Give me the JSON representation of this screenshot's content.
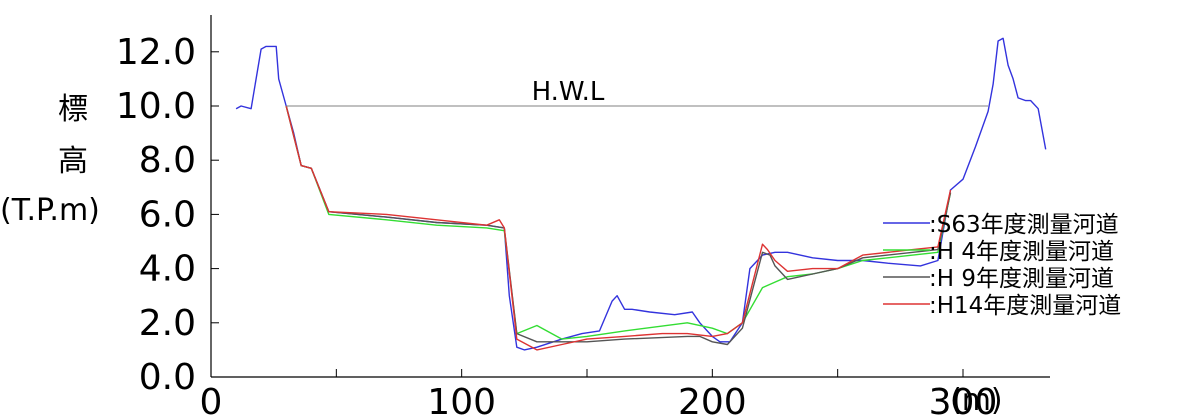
{
  "chart_data": {
    "type": "line",
    "xlabel": "(m)",
    "ylabel_chars": [
      "標",
      "高"
    ],
    "ylabel_unit": "(T.P.m)",
    "xlim": [
      0,
      350
    ],
    "ylim": [
      0,
      13
    ],
    "x_ticks": [
      "0",
      "100",
      "200",
      "300"
    ],
    "x_tick_values": [
      0,
      100,
      200,
      300
    ],
    "y_ticks": [
      "0.0",
      "2.0",
      "4.0",
      "6.0",
      "8.0",
      "10.0",
      "12.0"
    ],
    "y_tick_values": [
      0,
      2,
      4,
      6,
      8,
      10,
      12
    ],
    "x_minor": [
      50,
      150,
      250
    ],
    "grid": false,
    "legend_position": "right",
    "reference_line": {
      "label": "H.W.L",
      "y": 10.0,
      "x_from": 30,
      "x_to": 310,
      "color": "#808080"
    },
    "series": [
      {
        "name": ":S63年度測量河道",
        "color": "#3333dd",
        "x": [
          10,
          12,
          16,
          20,
          22,
          26,
          27,
          30,
          33,
          36,
          40,
          47,
          70,
          90,
          110,
          117,
          119,
          122,
          125,
          130,
          140,
          148,
          155,
          160,
          162,
          165,
          168,
          175,
          185,
          192,
          195,
          200,
          203,
          207,
          212,
          215,
          220,
          225,
          230,
          240,
          250,
          260,
          270,
          283,
          290,
          295,
          300,
          305,
          310,
          312,
          314,
          316,
          318,
          320,
          322,
          325,
          327,
          330,
          333
        ],
        "y": [
          9.9,
          10.0,
          9.9,
          12.1,
          12.2,
          12.2,
          11.0,
          10.0,
          9.0,
          7.8,
          7.7,
          6.1,
          5.9,
          5.7,
          5.6,
          5.5,
          3.0,
          1.1,
          1.0,
          1.1,
          1.4,
          1.6,
          1.7,
          2.8,
          3.0,
          2.5,
          2.5,
          2.4,
          2.3,
          2.4,
          2.0,
          1.5,
          1.3,
          1.3,
          2.0,
          4.0,
          4.5,
          4.6,
          4.6,
          4.4,
          4.3,
          4.3,
          4.2,
          4.1,
          4.3,
          6.9,
          7.3,
          8.5,
          9.8,
          10.8,
          12.4,
          12.5,
          11.5,
          11.0,
          10.3,
          10.2,
          10.2,
          9.9,
          8.4
        ]
      },
      {
        "name": ":H 4年度測量河道",
        "color": "#33dd33",
        "x": [
          30,
          36,
          40,
          47,
          70,
          90,
          110,
          117,
          122,
          130,
          140,
          150,
          165,
          190,
          200,
          206,
          212,
          220,
          225,
          230,
          240,
          250,
          260,
          280,
          290,
          295
        ],
        "y": [
          10.0,
          7.8,
          7.7,
          6.0,
          5.8,
          5.6,
          5.5,
          5.4,
          1.6,
          1.9,
          1.4,
          1.5,
          1.7,
          2.0,
          1.8,
          1.6,
          2.0,
          3.3,
          3.5,
          3.7,
          3.8,
          4.0,
          4.3,
          4.5,
          4.6,
          6.8
        ]
      },
      {
        "name": ":H 9年度測量河道",
        "color": "#555555",
        "x": [
          30,
          36,
          40,
          47,
          70,
          90,
          110,
          117,
          122,
          130,
          140,
          150,
          165,
          190,
          195,
          200,
          206,
          212,
          220,
          223,
          225,
          230,
          240,
          250,
          260,
          280,
          290,
          295
        ],
        "y": [
          10.0,
          7.8,
          7.7,
          6.1,
          5.9,
          5.7,
          5.6,
          5.5,
          1.6,
          1.3,
          1.3,
          1.3,
          1.4,
          1.5,
          1.5,
          1.3,
          1.2,
          1.8,
          4.6,
          4.5,
          4.1,
          3.6,
          3.8,
          4.0,
          4.4,
          4.6,
          4.7,
          6.8
        ]
      },
      {
        "name": ":H14年度測量河道",
        "color": "#dd3333",
        "x": [
          30,
          36,
          40,
          47,
          70,
          90,
          110,
          115,
          117,
          122,
          130,
          140,
          150,
          165,
          180,
          190,
          200,
          206,
          212,
          220,
          222,
          225,
          230,
          240,
          250,
          260,
          280,
          290,
          295
        ],
        "y": [
          10.0,
          7.8,
          7.7,
          6.1,
          6.0,
          5.8,
          5.6,
          5.8,
          5.5,
          1.4,
          1.0,
          1.2,
          1.4,
          1.5,
          1.6,
          1.6,
          1.5,
          1.6,
          2.0,
          4.9,
          4.7,
          4.3,
          3.9,
          4.0,
          4.0,
          4.5,
          4.7,
          4.8,
          6.9
        ]
      }
    ]
  }
}
